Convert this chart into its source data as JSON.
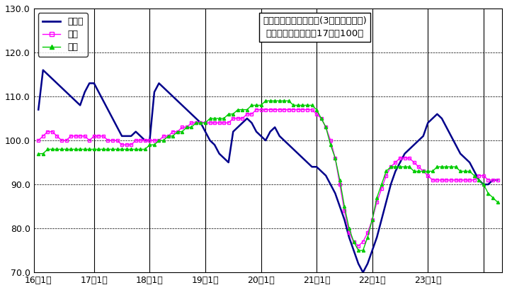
{
  "title_line1": "鉱工業生産指数の推移(3ヶ月移動平均)",
  "title_line2": "（季節調整済、平成17年＝100）",
  "legend_labels": [
    "鳥取県",
    "中国",
    "全国"
  ],
  "ylim": [
    70.0,
    130.0
  ],
  "yticks": [
    70.0,
    80.0,
    90.0,
    100.0,
    110.0,
    120.0,
    130.0
  ],
  "xtick_labels": [
    "16年1月",
    "17年1月",
    "18年1月",
    "19年1月",
    "20年1月",
    "21年1月",
    "22年1月",
    "23年1月"
  ],
  "xtick_positions": [
    0,
    12,
    24,
    36,
    48,
    60,
    72,
    84
  ],
  "colors": {
    "tottori": "#00008B",
    "chugoku": "#FF00FF",
    "zenkoku": "#00CC00"
  },
  "tottori": [
    107,
    116,
    115,
    114,
    113,
    112,
    111,
    110,
    109,
    108,
    111,
    113,
    113,
    111,
    109,
    107,
    105,
    103,
    101,
    101,
    101,
    102,
    101,
    100,
    100,
    111,
    113,
    112,
    111,
    110,
    109,
    108,
    107,
    106,
    105,
    104,
    102,
    100,
    99,
    97,
    96,
    95,
    102,
    103,
    104,
    105,
    104,
    102,
    101,
    100,
    102,
    103,
    101,
    100,
    99,
    98,
    97,
    96,
    95,
    94,
    94,
    93,
    92,
    90,
    88,
    85,
    82,
    78,
    75,
    72,
    70,
    72,
    75,
    78,
    82,
    86,
    90,
    93,
    95,
    97,
    98,
    99,
    100,
    101,
    104,
    105,
    106,
    105,
    103,
    101,
    99,
    97,
    96,
    95,
    93,
    91,
    90,
    90,
    91,
    91
  ],
  "chugoku": [
    100,
    101,
    102,
    102,
    101,
    100,
    100,
    101,
    101,
    101,
    101,
    100,
    101,
    101,
    101,
    100,
    100,
    100,
    99,
    99,
    99,
    100,
    100,
    100,
    100,
    100,
    100,
    101,
    101,
    102,
    102,
    103,
    103,
    104,
    104,
    104,
    104,
    104,
    104,
    104,
    104,
    104,
    105,
    105,
    105,
    106,
    106,
    107,
    107,
    107,
    107,
    107,
    107,
    107,
    107,
    107,
    107,
    107,
    107,
    107,
    106,
    105,
    103,
    100,
    96,
    90,
    84,
    79,
    77,
    76,
    77,
    79,
    82,
    86,
    89,
    92,
    94,
    95,
    96,
    96,
    96,
    95,
    94,
    93,
    92,
    91,
    91,
    91,
    91,
    91,
    91,
    91,
    91,
    91,
    91,
    92,
    92,
    91,
    91,
    91
  ],
  "zenkoku": [
    97,
    97,
    98,
    98,
    98,
    98,
    98,
    98,
    98,
    98,
    98,
    98,
    98,
    98,
    98,
    98,
    98,
    98,
    98,
    98,
    98,
    98,
    98,
    98,
    99,
    99,
    100,
    100,
    101,
    101,
    102,
    102,
    103,
    103,
    104,
    104,
    104,
    105,
    105,
    105,
    105,
    106,
    106,
    107,
    107,
    107,
    108,
    108,
    108,
    109,
    109,
    109,
    109,
    109,
    109,
    108,
    108,
    108,
    108,
    108,
    107,
    105,
    103,
    99,
    96,
    91,
    85,
    80,
    77,
    75,
    75,
    78,
    82,
    87,
    90,
    93,
    94,
    94,
    94,
    94,
    94,
    93,
    93,
    93,
    93,
    93,
    94,
    94,
    94,
    94,
    94,
    93,
    93,
    93,
    92,
    91,
    90,
    88,
    87,
    86
  ],
  "n_points": 100,
  "background_color": "#FFFFFF",
  "vline_positions": [
    12,
    24,
    36,
    48,
    60,
    72,
    84,
    96
  ]
}
